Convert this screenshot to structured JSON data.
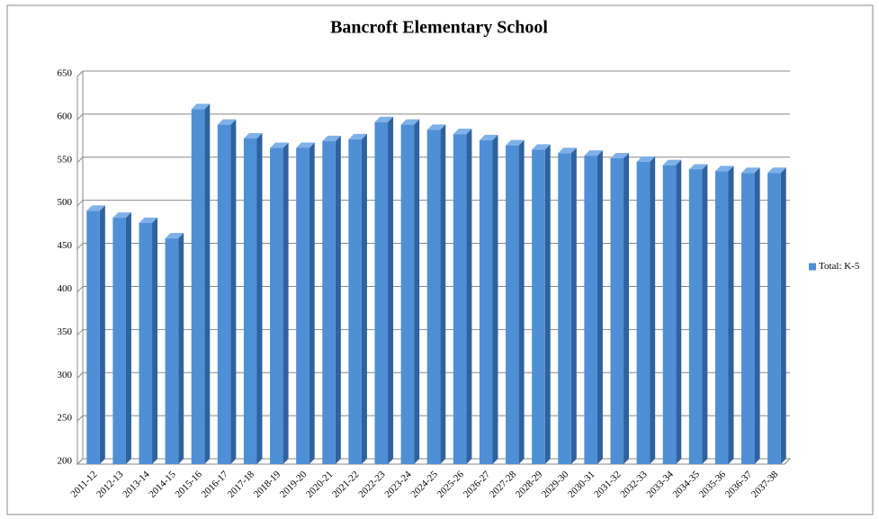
{
  "chart_data": {
    "type": "bar",
    "title": "Bancroft Elementary School",
    "categories": [
      "2011-12",
      "2012-13",
      "2013-14",
      "2014-15",
      "2015-16",
      "2016-17",
      "2017-18",
      "2018-19",
      "2019-20",
      "2020-21",
      "2021-22",
      "2022-23",
      "2023-24",
      "2024-25",
      "2025-26",
      "2026-27",
      "2027-28",
      "2028-29",
      "2029-30",
      "2030-31",
      "2031-32",
      "2032-33",
      "2033-34",
      "2034-35",
      "2035-36",
      "2036-37",
      "2037-38"
    ],
    "series": [
      {
        "name": "Total: K-5",
        "color": "#4f8fd6",
        "values": [
          494,
          486,
          480,
          462,
          612,
          594,
          578,
          567,
          567,
          575,
          577,
          597,
          594,
          588,
          583,
          576,
          570,
          565,
          561,
          558,
          555,
          551,
          547,
          542,
          540,
          538,
          538
        ]
      }
    ],
    "ylim": [
      200,
      650
    ],
    "yticks": [
      200,
      250,
      300,
      350,
      400,
      450,
      500,
      550,
      600,
      650
    ],
    "grid": true,
    "legend": "right"
  }
}
